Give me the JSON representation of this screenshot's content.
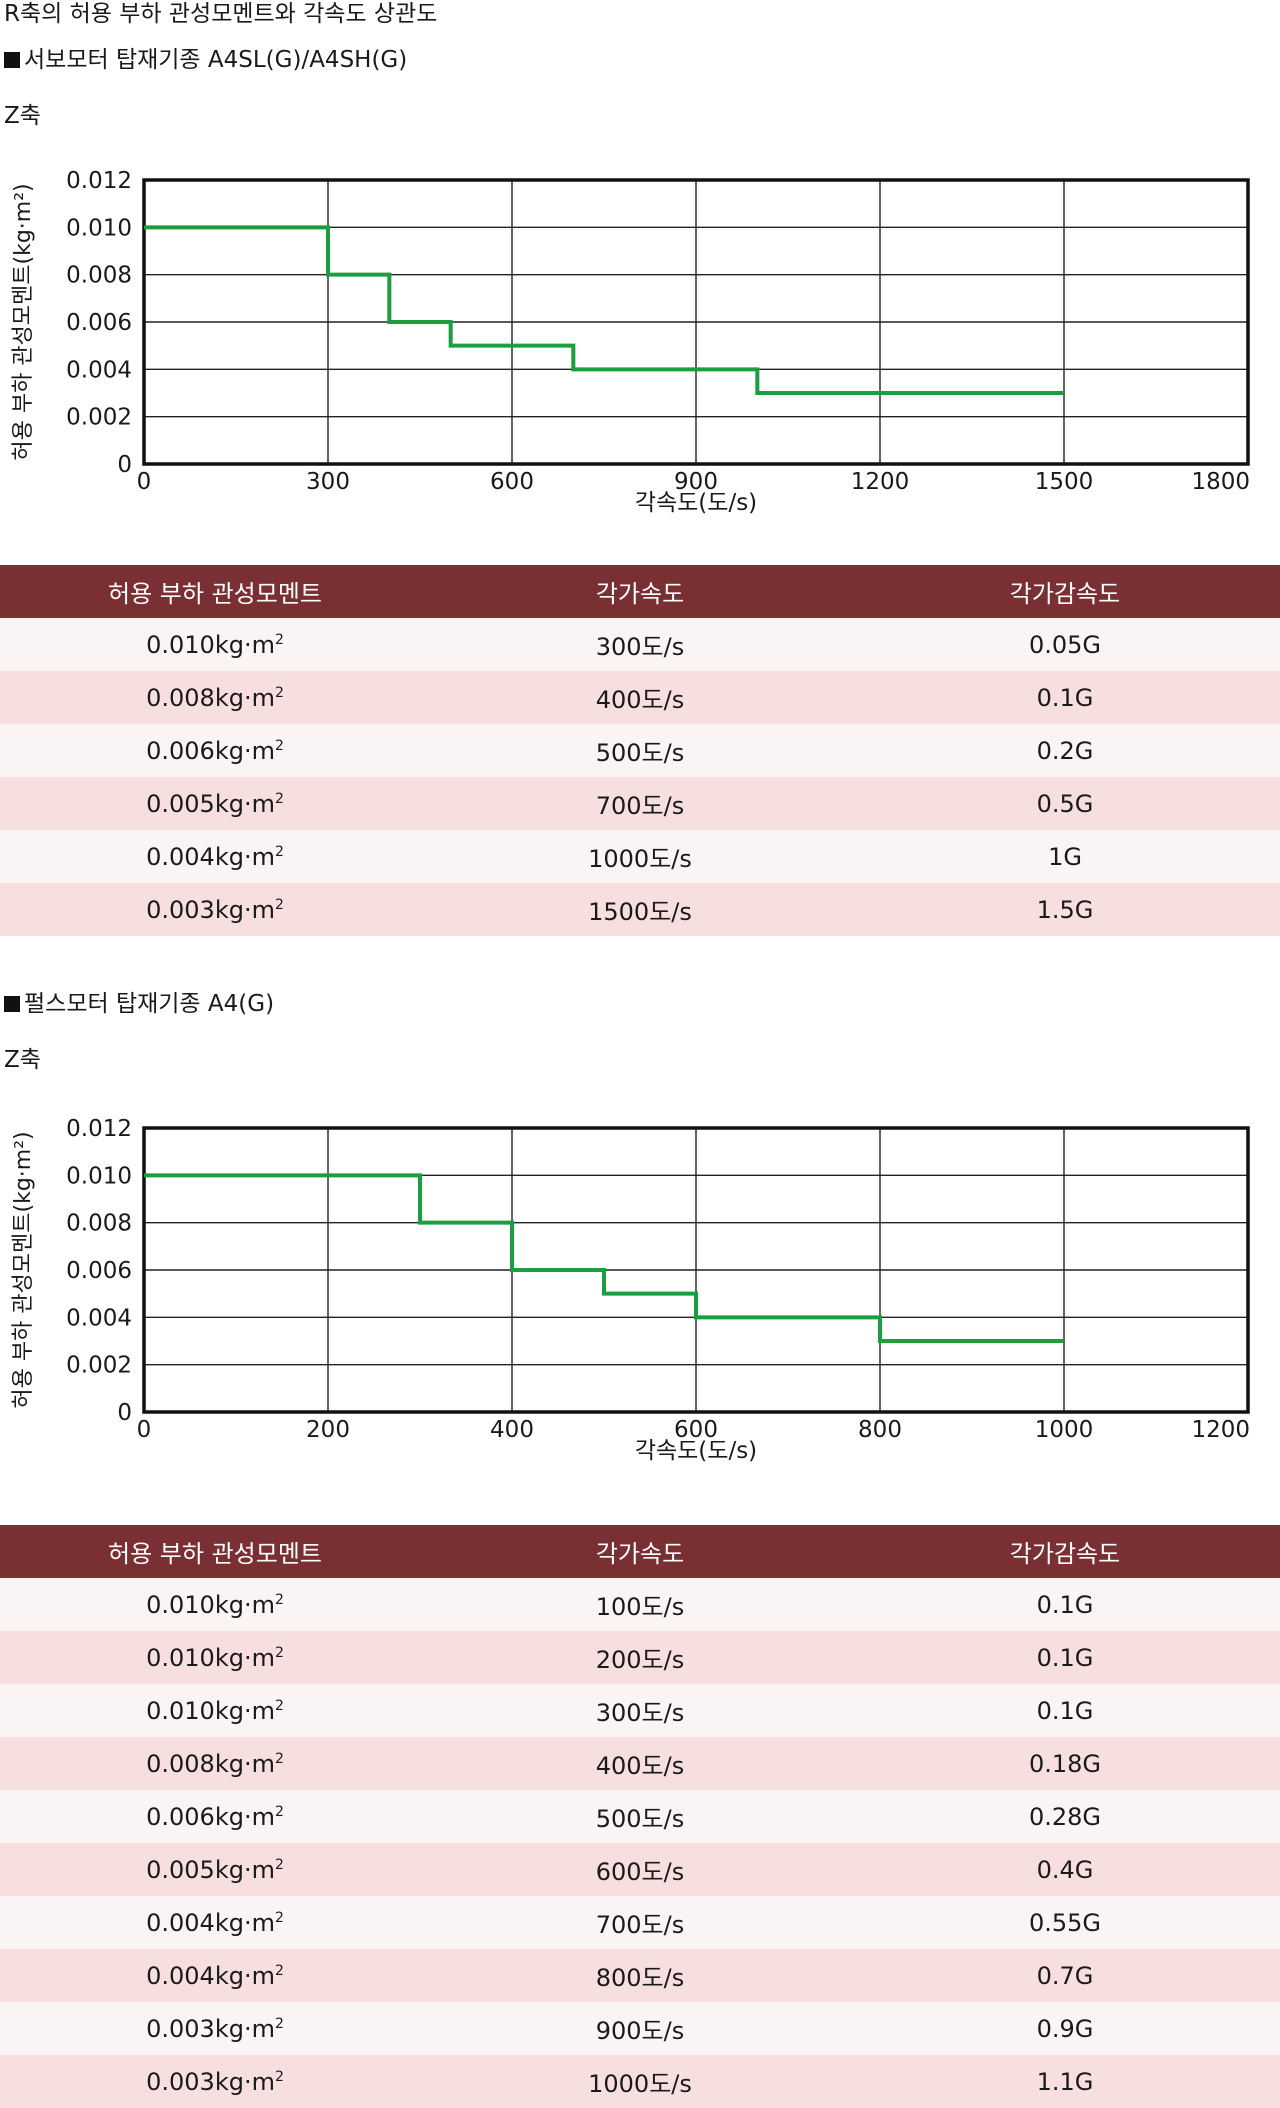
{
  "page": {
    "title": "R축의 허용 부하 관성모멘트와 각속도 상관도",
    "section1": "서보모터 탑재기종 A4SL(G)/A4SH(G)",
    "section2": "펄스모터 탑재기종 A4(G)",
    "axis_name": "Z축"
  },
  "chart_data": [
    {
      "type": "line",
      "step": true,
      "x": [
        0,
        300,
        400,
        500,
        700,
        1000,
        1500
      ],
      "y": [
        0.01,
        0.008,
        0.006,
        0.005,
        0.004,
        0.003,
        0.003
      ],
      "xlabel": "각속도(도/s)",
      "ylabel": "허용 부하 관성모멘트(kg·m²)",
      "xlim": [
        0,
        1800
      ],
      "ylim": [
        0,
        0.012
      ],
      "xticks": [
        "0",
        "300",
        "600",
        "900",
        "1200",
        "1500",
        "1800"
      ],
      "yticks": [
        "0",
        "0.002",
        "0.004",
        "0.006",
        "0.008",
        "0.010",
        "0.012"
      ],
      "grid": true,
      "line_color": "#1a9e3e"
    },
    {
      "type": "line",
      "step": true,
      "x": [
        0,
        300,
        400,
        500,
        600,
        800,
        1000
      ],
      "y": [
        0.01,
        0.008,
        0.006,
        0.005,
        0.004,
        0.003,
        0.003
      ],
      "xlabel": "각속도(도/s)",
      "ylabel": "허용 부하 관성모멘트(kg·m²)",
      "xlim": [
        0,
        1200
      ],
      "ylim": [
        0,
        0.012
      ],
      "xticks": [
        "0",
        "200",
        "400",
        "600",
        "800",
        "1000",
        "1200"
      ],
      "yticks": [
        "0",
        "0.002",
        "0.004",
        "0.006",
        "0.008",
        "0.010",
        "0.012"
      ],
      "grid": true,
      "line_color": "#1a9e3e"
    }
  ],
  "tables": [
    {
      "headers": [
        "허용 부하 관성모멘트",
        "각가속도",
        "각가감속도"
      ],
      "unit_suffix": "kg·m",
      "unit_exp": "2",
      "rows": [
        [
          "0.010",
          "300도/s",
          "0.05G"
        ],
        [
          "0.008",
          "400도/s",
          "0.1G"
        ],
        [
          "0.006",
          "500도/s",
          "0.2G"
        ],
        [
          "0.005",
          "700도/s",
          "0.5G"
        ],
        [
          "0.004",
          "1000도/s",
          "1G"
        ],
        [
          "0.003",
          "1500도/s",
          "1.5G"
        ]
      ]
    },
    {
      "headers": [
        "허용 부하 관성모멘트",
        "각가속도",
        "각가감속도"
      ],
      "unit_suffix": "kg·m",
      "unit_exp": "2",
      "rows": [
        [
          "0.010",
          "100도/s",
          "0.1G"
        ],
        [
          "0.010",
          "200도/s",
          "0.1G"
        ],
        [
          "0.010",
          "300도/s",
          "0.1G"
        ],
        [
          "0.008",
          "400도/s",
          "0.18G"
        ],
        [
          "0.006",
          "500도/s",
          "0.28G"
        ],
        [
          "0.005",
          "600도/s",
          "0.4G"
        ],
        [
          "0.004",
          "700도/s",
          "0.55G"
        ],
        [
          "0.004",
          "800도/s",
          "0.7G"
        ],
        [
          "0.003",
          "900도/s",
          "0.9G"
        ],
        [
          "0.003",
          "1000도/s",
          "1.1G"
        ]
      ]
    }
  ],
  "colors": {
    "header_bg": "#7a2f33",
    "row_odd": "#fbf4f4",
    "row_even": "#f7dfe0"
  }
}
